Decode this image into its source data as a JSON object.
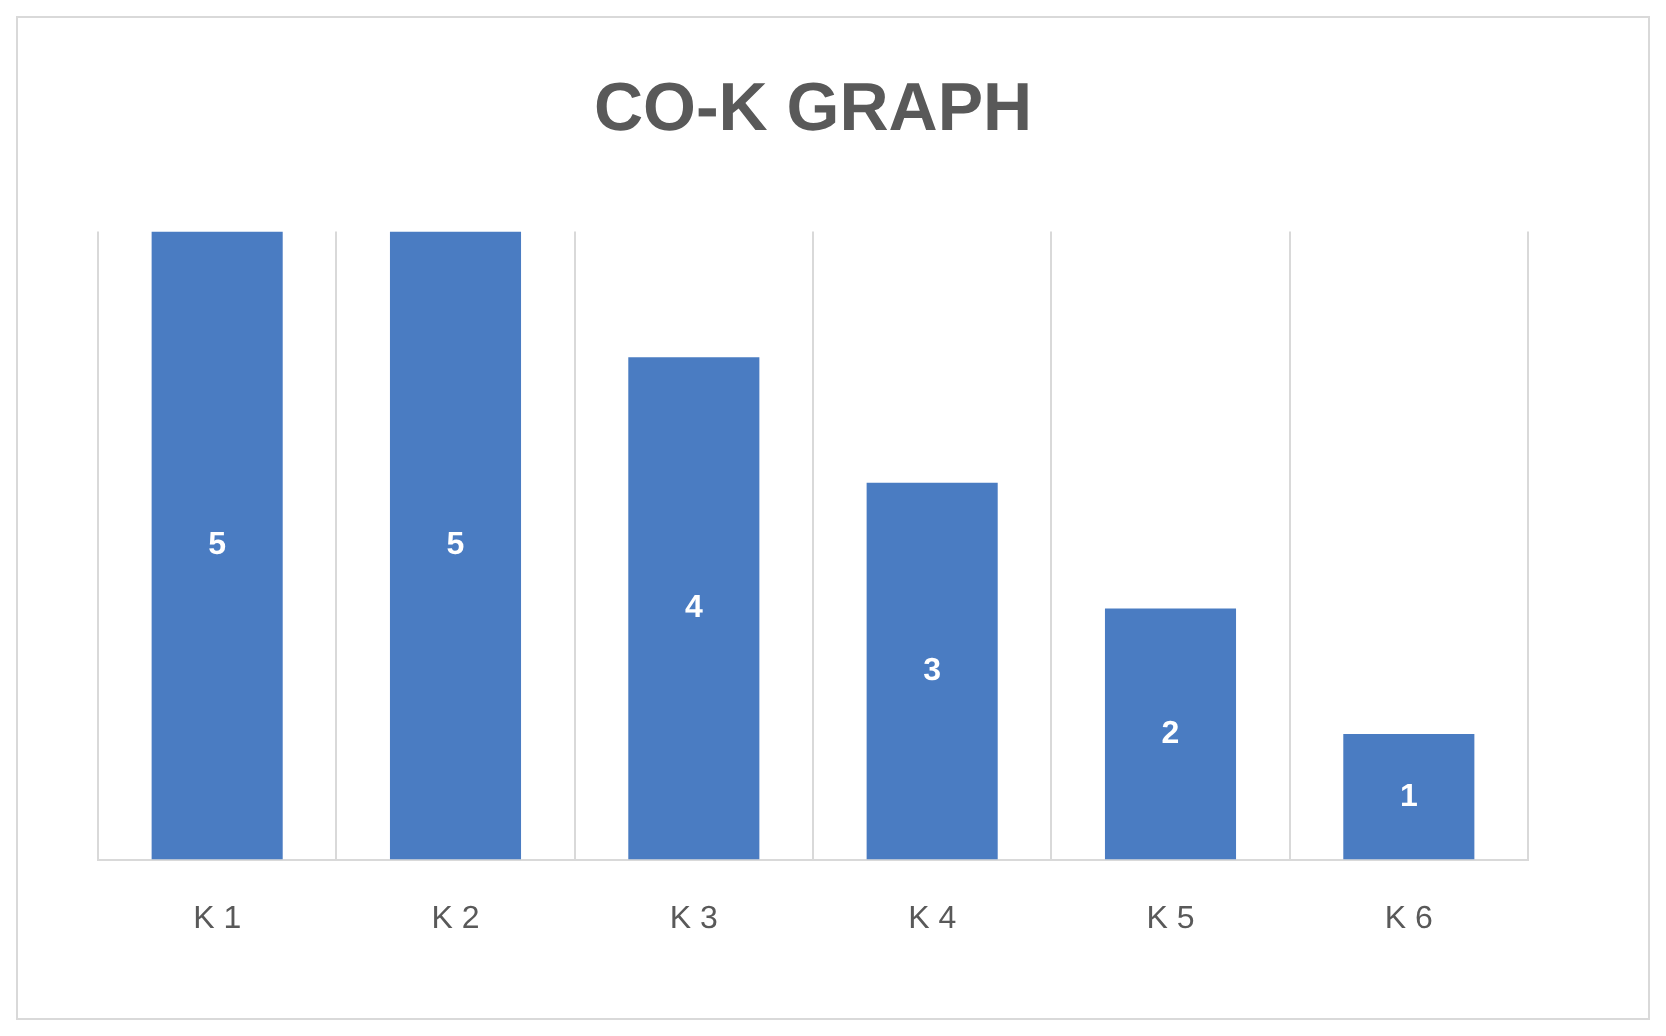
{
  "chart_data": {
    "type": "bar",
    "title": "CO-K GRAPH",
    "categories": [
      "K 1",
      "K 2",
      "K 3",
      "K 4",
      "K 5",
      "K 6"
    ],
    "values": [
      5,
      5,
      4,
      3,
      2,
      1
    ],
    "color": "#4a7cc2",
    "data_labels": true,
    "grid": "x"
  }
}
